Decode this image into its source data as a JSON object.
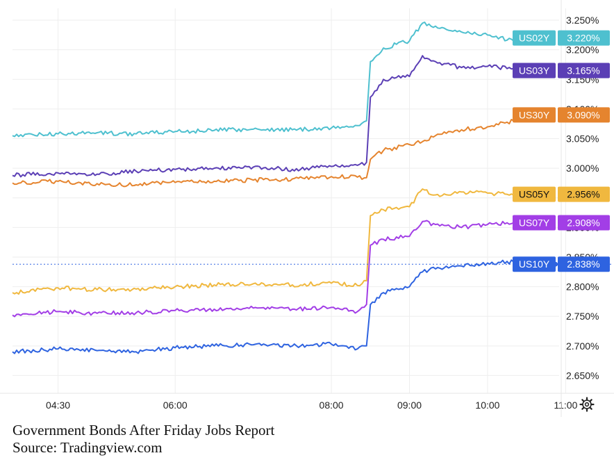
{
  "caption": {
    "title": "Government Bonds After Friday Jobs Report",
    "source": "Source: Tradingview.com"
  },
  "settings_icon": "gear-icon",
  "chart_data": {
    "type": "line",
    "x_type": "time",
    "xlim": [
      "03:55",
      "10:55"
    ],
    "ylim": [
      2.62,
      3.27
    ],
    "yticks": [
      2.65,
      2.7,
      2.75,
      2.8,
      2.85,
      2.9,
      2.95,
      3.0,
      3.05,
      3.1,
      3.15,
      3.2,
      3.25
    ],
    "ytick_labels": [
      "2.650%",
      "2.700%",
      "2.750%",
      "2.800%",
      "2.850%",
      "2.900%",
      "2.950%",
      "3.000%",
      "3.050%",
      "3.100%",
      "3.150%",
      "3.200%",
      "3.250%"
    ],
    "xticks": [
      "04:30",
      "06:00",
      "08:00",
      "09:00",
      "10:00",
      "11:00"
    ],
    "grid": true,
    "reference_line": {
      "series": "US10Y",
      "value": 2.838,
      "style": "dotted"
    },
    "series": [
      {
        "name": "US02Y",
        "label": "US02Y",
        "value_label": "3.220%",
        "color": "#4ec0cf",
        "x": [
          "03:55",
          "04:30",
          "05:00",
          "05:30",
          "06:00",
          "06:30",
          "07:00",
          "07:30",
          "08:00",
          "08:20",
          "08:27",
          "08:30",
          "08:40",
          "09:00",
          "09:10",
          "09:20",
          "09:40",
          "10:00",
          "10:20",
          "10:40",
          "10:50"
        ],
        "y": [
          3.055,
          3.058,
          3.06,
          3.058,
          3.062,
          3.064,
          3.066,
          3.065,
          3.068,
          3.072,
          3.08,
          3.18,
          3.203,
          3.215,
          3.245,
          3.24,
          3.23,
          3.225,
          3.215,
          3.218,
          3.22
        ]
      },
      {
        "name": "US03Y",
        "label": "US03Y",
        "value_label": "3.165%",
        "color": "#5b3fb5",
        "x": [
          "03:55",
          "04:30",
          "05:00",
          "05:30",
          "06:00",
          "06:30",
          "07:00",
          "07:30",
          "08:00",
          "08:20",
          "08:27",
          "08:30",
          "08:40",
          "09:00",
          "09:10",
          "09:20",
          "09:40",
          "10:00",
          "10:20",
          "10:40",
          "10:50"
        ],
        "y": [
          2.988,
          2.992,
          2.99,
          2.995,
          2.998,
          3.0,
          3.002,
          2.998,
          3.003,
          3.005,
          3.01,
          3.12,
          3.15,
          3.155,
          3.19,
          3.18,
          3.17,
          3.172,
          3.168,
          3.167,
          3.165
        ]
      },
      {
        "name": "US30Y",
        "label": "US30Y",
        "value_label": "3.090%",
        "color": "#e5842e",
        "x": [
          "03:55",
          "04:30",
          "05:00",
          "05:30",
          "06:00",
          "06:30",
          "07:00",
          "07:30",
          "08:00",
          "08:20",
          "08:27",
          "08:30",
          "08:40",
          "09:00",
          "09:10",
          "09:20",
          "09:40",
          "10:00",
          "10:20",
          "10:40",
          "10:50"
        ],
        "y": [
          2.975,
          2.978,
          2.974,
          2.972,
          2.976,
          2.978,
          2.98,
          2.982,
          2.986,
          2.985,
          2.984,
          3.015,
          3.03,
          3.04,
          3.045,
          3.055,
          3.065,
          3.07,
          3.08,
          3.098,
          3.09
        ]
      },
      {
        "name": "US05Y",
        "label": "US05Y",
        "value_label": "2.956%",
        "color": "#f0b83f",
        "x": [
          "03:55",
          "04:30",
          "05:00",
          "05:30",
          "06:00",
          "06:30",
          "07:00",
          "07:30",
          "08:00",
          "08:20",
          "08:27",
          "08:30",
          "08:40",
          "09:00",
          "09:10",
          "09:20",
          "09:40",
          "10:00",
          "10:20",
          "10:40",
          "10:50"
        ],
        "y": [
          2.79,
          2.798,
          2.795,
          2.796,
          2.8,
          2.803,
          2.805,
          2.803,
          2.806,
          2.802,
          2.81,
          2.92,
          2.93,
          2.935,
          2.965,
          2.955,
          2.96,
          2.958,
          2.955,
          2.962,
          2.956
        ]
      },
      {
        "name": "US07Y",
        "label": "US07Y",
        "value_label": "2.908%",
        "color": "#a23ee6",
        "x": [
          "03:55",
          "04:30",
          "05:00",
          "05:30",
          "06:00",
          "06:30",
          "07:00",
          "07:30",
          "08:00",
          "08:20",
          "08:27",
          "08:30",
          "08:40",
          "09:00",
          "09:10",
          "09:20",
          "09:40",
          "10:00",
          "10:20",
          "10:40",
          "10:50"
        ],
        "y": [
          2.752,
          2.758,
          2.755,
          2.756,
          2.76,
          2.762,
          2.764,
          2.762,
          2.765,
          2.758,
          2.77,
          2.87,
          2.88,
          2.885,
          2.91,
          2.905,
          2.9,
          2.905,
          2.908,
          2.91,
          2.908
        ]
      },
      {
        "name": "US10Y",
        "label": "US10Y",
        "value_label": "2.838%",
        "color": "#2e63e0",
        "x": [
          "03:55",
          "04:30",
          "05:00",
          "05:30",
          "06:00",
          "06:30",
          "07:00",
          "07:30",
          "08:00",
          "08:20",
          "08:27",
          "08:30",
          "08:40",
          "09:00",
          "09:10",
          "09:20",
          "09:40",
          "10:00",
          "10:20",
          "10:40",
          "10:50"
        ],
        "y": [
          2.69,
          2.695,
          2.692,
          2.69,
          2.697,
          2.7,
          2.702,
          2.7,
          2.703,
          2.695,
          2.7,
          2.77,
          2.79,
          2.8,
          2.825,
          2.83,
          2.835,
          2.84,
          2.842,
          2.845,
          2.838
        ]
      }
    ]
  }
}
